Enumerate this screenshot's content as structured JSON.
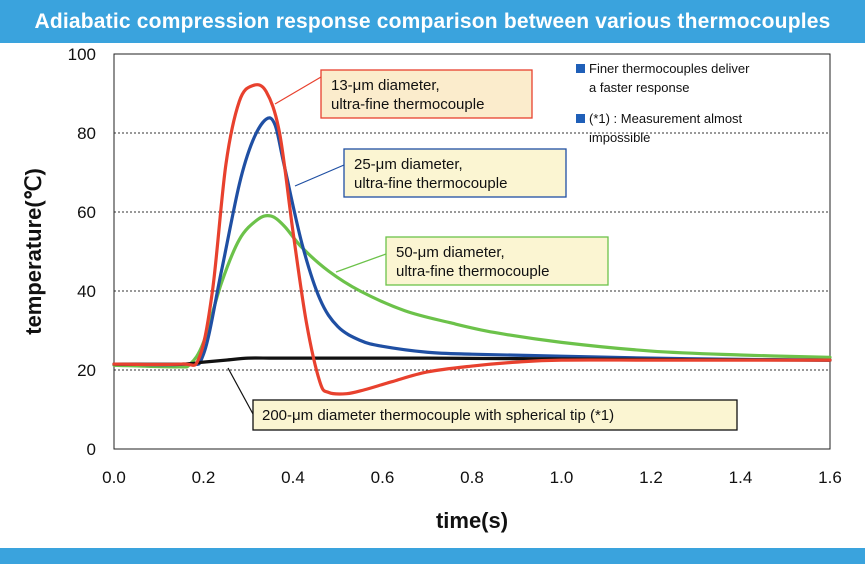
{
  "title": "Adiabatic compression response comparison between various thermocouples",
  "colors": {
    "header": "#3aa3dd",
    "red": "#e8412e",
    "blue": "#1f4fa3",
    "green": "#6cc24a",
    "black": "#111111",
    "note_square": "#1f5fb8"
  },
  "callouts": [
    {
      "series": "red",
      "lines": [
        "13-μm diameter,",
        "ultra-fine thermocouple"
      ],
      "fill": "#fbeccc",
      "stroke": "#e8412e"
    },
    {
      "series": "blue",
      "lines": [
        "25-μm diameter,",
        "ultra-fine thermocouple"
      ],
      "fill": "#fbf5d2",
      "stroke": "#1f4fa3"
    },
    {
      "series": "green",
      "lines": [
        "50-μm diameter,",
        "ultra-fine thermocouple"
      ],
      "fill": "#fbf5d2",
      "stroke": "#6cc24a"
    },
    {
      "series": "black",
      "lines": [
        "200-μm diameter thermocouple with spherical tip (*1)"
      ],
      "fill": "#fbf5d2",
      "stroke": "#111111"
    }
  ],
  "notes": [
    [
      "Finer thermocouples deliver",
      "a faster response"
    ],
    [
      "(*1) : Measurement almost",
      "impossible"
    ]
  ],
  "chart_data": {
    "type": "line",
    "xlabel": "time(s)",
    "ylabel": "temperature(℃)",
    "xlim": [
      0.0,
      1.6
    ],
    "ylim": [
      0,
      100
    ],
    "xticks": [
      "0.0",
      "0.2",
      "0.4",
      "0.6",
      "0.8",
      "1.0",
      "1.2",
      "1.4",
      "1.6"
    ],
    "yticks": [
      "0",
      "20",
      "40",
      "60",
      "80",
      "100"
    ],
    "grid": "horizontal dotted at 20, 40, 60, 80",
    "series": [
      {
        "key": "red",
        "color": "#e8412e",
        "x": [
          0.0,
          0.15,
          0.19,
          0.22,
          0.25,
          0.28,
          0.31,
          0.34,
          0.37,
          0.4,
          0.43,
          0.46,
          0.48,
          0.52,
          0.56,
          0.62,
          0.7,
          0.8,
          0.9,
          1.0,
          1.2,
          1.4,
          1.6
        ],
        "y": [
          21.5,
          21.5,
          23,
          40,
          72,
          88,
          92,
          90.5,
          80,
          55,
          32,
          17,
          14.3,
          14,
          15,
          17,
          19.5,
          21,
          22,
          22.5,
          22.5,
          22.5,
          22.5
        ]
      },
      {
        "key": "blue",
        "color": "#1f4fa3",
        "x": [
          0.0,
          0.16,
          0.2,
          0.24,
          0.28,
          0.31,
          0.34,
          0.36,
          0.38,
          0.42,
          0.46,
          0.5,
          0.55,
          0.6,
          0.7,
          0.8,
          1.0,
          1.2,
          1.4,
          1.6
        ],
        "y": [
          21.5,
          21.5,
          24,
          45,
          67,
          78,
          83.5,
          82,
          72,
          52,
          38,
          31,
          27.5,
          26,
          24.5,
          24,
          23.5,
          23,
          22.7,
          22.5
        ]
      },
      {
        "key": "green",
        "color": "#6cc24a",
        "x": [
          0.0,
          0.14,
          0.17,
          0.2,
          0.24,
          0.28,
          0.32,
          0.35,
          0.38,
          0.42,
          0.48,
          0.55,
          0.65,
          0.75,
          0.85,
          1.0,
          1.2,
          1.4,
          1.6
        ],
        "y": [
          21.2,
          20.8,
          21.5,
          27,
          42,
          53,
          58,
          59,
          56.5,
          51,
          45,
          40,
          35,
          32,
          29.5,
          27,
          24.8,
          23.8,
          23.2
        ]
      },
      {
        "key": "black",
        "color": "#111111",
        "x": [
          0.0,
          0.15,
          0.2,
          0.25,
          0.3,
          0.35,
          0.4,
          0.5,
          0.7,
          1.0,
          1.3,
          1.6
        ],
        "y": [
          21.5,
          21.5,
          22,
          22.5,
          23,
          23,
          23,
          23,
          23,
          22.8,
          22.6,
          22.5
        ]
      }
    ]
  }
}
